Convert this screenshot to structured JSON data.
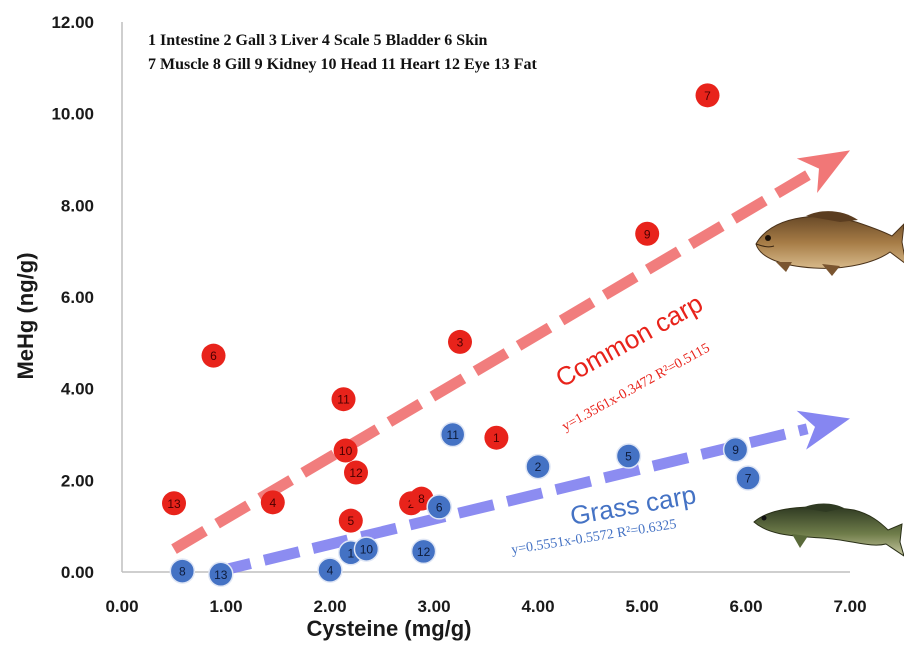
{
  "chart_data": {
    "type": "scatter",
    "xlabel": "Cysteine (mg/g)",
    "ylabel": "MeHg (ng/g)",
    "xlim": [
      0,
      7
    ],
    "ylim": [
      0,
      12
    ],
    "x_ticks": [
      "0.00",
      "1.00",
      "2.00",
      "3.00",
      "4.00",
      "5.00",
      "6.00",
      "7.00"
    ],
    "y_ticks": [
      "0.00",
      "2.00",
      "4.00",
      "6.00",
      "8.00",
      "10.00",
      "12.00"
    ],
    "legend_lines": [
      "1 Intestine  2 Gall 3 Liver 4 Scale 5 Bladder 6 Skin",
      "7 Muscle 8 Gill 9 Kidney 10 Head 11 Heart 12 Eye 13 Fat"
    ],
    "series": [
      {
        "name": "Common carp",
        "equation": "y=1.3561x-0.3472  R²=0.5115",
        "color": "#e8231b",
        "arrow_color": "#f07070",
        "trend_from": [
          0.5,
          0.5
        ],
        "trend_to": [
          7.0,
          9.2
        ],
        "points": [
          {
            "label": "1",
            "x": 3.6,
            "y": 2.93
          },
          {
            "label": "2",
            "x": 2.78,
            "y": 1.5
          },
          {
            "label": "3",
            "x": 3.25,
            "y": 5.02
          },
          {
            "label": "4",
            "x": 1.45,
            "y": 1.52
          },
          {
            "label": "5",
            "x": 2.2,
            "y": 1.12
          },
          {
            "label": "6",
            "x": 0.88,
            "y": 4.72
          },
          {
            "label": "7",
            "x": 5.63,
            "y": 10.4
          },
          {
            "label": "8",
            "x": 2.88,
            "y": 1.6
          },
          {
            "label": "9",
            "x": 5.05,
            "y": 7.38
          },
          {
            "label": "10",
            "x": 2.15,
            "y": 2.65
          },
          {
            "label": "11",
            "x": 2.13,
            "y": 3.77
          },
          {
            "label": "12",
            "x": 2.25,
            "y": 2.17
          },
          {
            "label": "13",
            "x": 0.5,
            "y": 1.5
          }
        ]
      },
      {
        "name": "Grass carp",
        "equation": "y=0.5551x-0.5572 R²=0.6325",
        "color": "#4472c4",
        "arrow_color": "#8080f0",
        "trend_from": [
          0.9,
          0.0
        ],
        "trend_to": [
          7.0,
          3.35
        ],
        "points": [
          {
            "label": "1",
            "x": 2.2,
            "y": 0.42
          },
          {
            "label": "2",
            "x": 4.0,
            "y": 2.3
          },
          {
            "label": "4",
            "x": 2.0,
            "y": 0.04
          },
          {
            "label": "5",
            "x": 4.87,
            "y": 2.53
          },
          {
            "label": "6",
            "x": 3.05,
            "y": 1.42
          },
          {
            "label": "7",
            "x": 6.02,
            "y": 2.05
          },
          {
            "label": "8",
            "x": 0.58,
            "y": 0.02
          },
          {
            "label": "9",
            "x": 5.9,
            "y": 2.67
          },
          {
            "label": "10",
            "x": 2.35,
            "y": 0.5
          },
          {
            "label": "11",
            "x": 3.18,
            "y": 3.0
          },
          {
            "label": "12",
            "x": 2.9,
            "y": 0.45
          },
          {
            "label": "13",
            "x": 0.95,
            "y": -0.05
          }
        ]
      }
    ]
  }
}
